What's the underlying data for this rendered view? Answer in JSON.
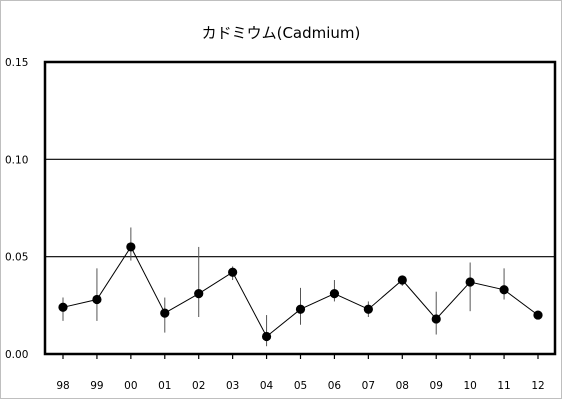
{
  "chart_data": {
    "type": "line",
    "title": "カドミウム(Cadmium)",
    "xlabel": "",
    "ylabel": "",
    "categories": [
      "98",
      "99",
      "00",
      "01",
      "02",
      "03",
      "04",
      "05",
      "06",
      "07",
      "08",
      "09",
      "10",
      "11",
      "12"
    ],
    "ylim": [
      0,
      0.15
    ],
    "yticks": [
      "0.00",
      "0.05",
      "0.10",
      "0.15"
    ],
    "ytick_values": [
      0,
      0.05,
      0.1,
      0.15
    ],
    "grid": true,
    "legend": "none",
    "series": [
      {
        "values": [
          0.024,
          0.028,
          0.055,
          0.021,
          0.031,
          0.042,
          0.009,
          0.023,
          0.031,
          0.023,
          0.038,
          0.018,
          0.037,
          0.033,
          0.02
        ],
        "err_low": [
          0.017,
          0.017,
          0.048,
          0.011,
          0.019,
          0.038,
          0.004,
          0.015,
          0.027,
          0.019,
          0.035,
          0.01,
          0.022,
          0.028,
          0.018
        ],
        "err_high": [
          0.029,
          0.044,
          0.065,
          0.029,
          0.055,
          0.045,
          0.02,
          0.034,
          0.038,
          0.027,
          0.04,
          0.032,
          0.047,
          0.044,
          0.022
        ]
      }
    ],
    "colors": {
      "line": "#000000",
      "marker": "#000000",
      "grid": "#000000"
    }
  }
}
